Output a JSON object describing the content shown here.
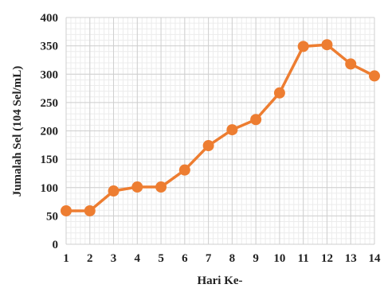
{
  "chart_data": {
    "type": "line",
    "title": "",
    "xlabel": "Hari Ke-",
    "ylabel": "Jumalah Sel (104 Sel/mL)",
    "categories": [
      "1",
      "2",
      "3",
      "4",
      "5",
      "6",
      "7",
      "8",
      "9",
      "10",
      "11",
      "12",
      "13",
      "14"
    ],
    "x": [
      1,
      2,
      3,
      4,
      5,
      6,
      7,
      8,
      9,
      10,
      11,
      12,
      13,
      14
    ],
    "y_ticks": [
      "0",
      "50",
      "100",
      "150",
      "200",
      "250",
      "300",
      "350",
      "400"
    ],
    "ylim": [
      0,
      400
    ],
    "grid": true,
    "series": [
      {
        "values": [
          59,
          59,
          94,
          101,
          101,
          131,
          174,
          202,
          220,
          267,
          349,
          352,
          318,
          297
        ],
        "color": "#ED7D31"
      }
    ]
  }
}
